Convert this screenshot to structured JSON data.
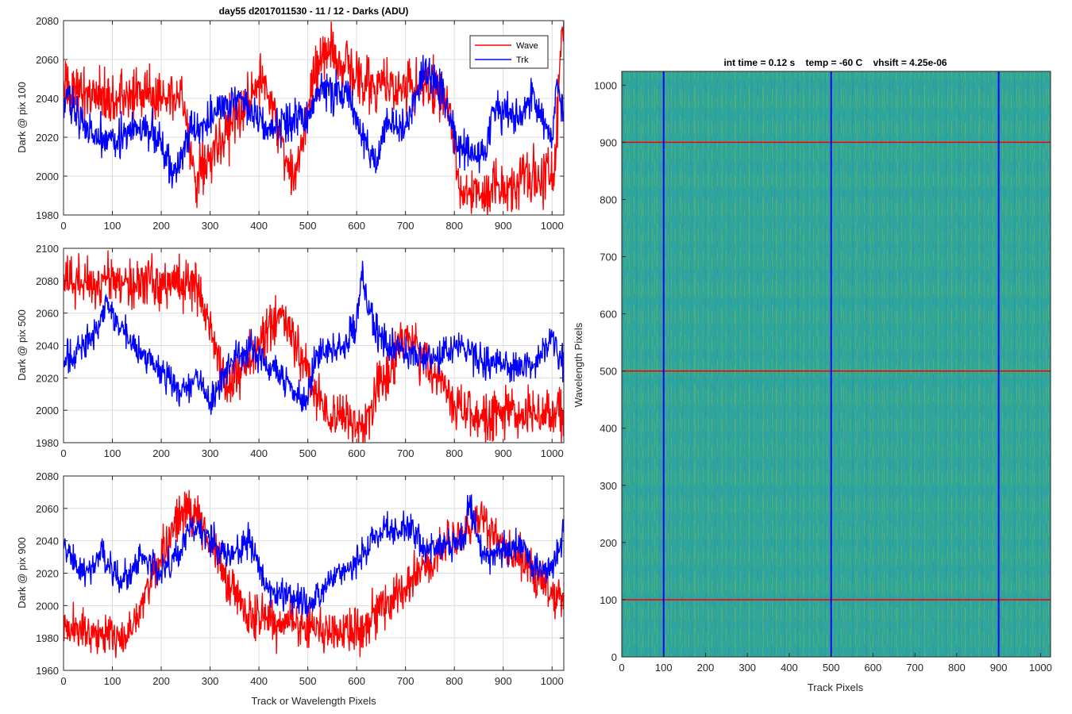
{
  "figure": {
    "left_title": "day55 d2017011530 - 11 / 12 - Darks (ADU)",
    "right_title": "int time = 0.12 s    temp = -60 C    vhsift = 4.25e-06",
    "legend": [
      "Wave",
      "Trk"
    ],
    "colors": {
      "wave": "#ff0000",
      "trk": "#0000ff",
      "grid": "#dedede",
      "axis": "#262626"
    }
  },
  "chart_data": [
    {
      "type": "line",
      "title": "day55 d2017011530 - 11 / 12 - Darks (ADU)",
      "xlabel": "",
      "ylabel": "Dark @ pix 100",
      "xlim": [
        0,
        1024
      ],
      "ylim": [
        1980,
        2080
      ],
      "x_ticks": [
        0,
        100,
        200,
        300,
        400,
        500,
        600,
        700,
        800,
        900,
        1000
      ],
      "y_ticks": [
        1980,
        2000,
        2020,
        2040,
        2060,
        2080
      ],
      "legend_position": "top-right",
      "series": [
        {
          "name": "Wave",
          "color": "#ff0000",
          "mean": 2028,
          "noise": 7,
          "points": [
            [
              45,
              2044
            ],
            [
              110,
              2040
            ],
            [
              240,
              2044
            ],
            [
              270,
              2000
            ],
            [
              410,
              2050
            ],
            [
              470,
              1998
            ],
            [
              530,
              2065
            ],
            [
              585,
              2055
            ],
            [
              610,
              2048
            ],
            [
              780,
              2045
            ],
            [
              815,
              1990
            ],
            [
              1005,
              2003
            ],
            [
              1020,
              2075
            ]
          ]
        },
        {
          "name": "Trk",
          "color": "#0000ff",
          "mean": 2028,
          "noise": 5,
          "points": [
            [
              0,
              2030
            ],
            [
              10,
              2046
            ],
            [
              20,
              2035
            ],
            [
              60,
              2022
            ],
            [
              100,
              2020
            ],
            [
              180,
              2025
            ],
            [
              225,
              2000
            ],
            [
              260,
              2022
            ],
            [
              300,
              2030
            ],
            [
              360,
              2040
            ],
            [
              420,
              2025
            ],
            [
              500,
              2030
            ],
            [
              520,
              2045
            ],
            [
              580,
              2042
            ],
            [
              630,
              2010
            ],
            [
              640,
              2005
            ],
            [
              660,
              2030
            ],
            [
              700,
              2025
            ],
            [
              740,
              2058
            ],
            [
              780,
              2038
            ],
            [
              810,
              2015
            ],
            [
              860,
              2008
            ],
            [
              880,
              2033
            ],
            [
              940,
              2030
            ],
            [
              960,
              2042
            ],
            [
              1000,
              2020
            ],
            [
              1010,
              2050
            ],
            [
              1024,
              2030
            ]
          ]
        }
      ]
    },
    {
      "type": "line",
      "title": "",
      "xlabel": "",
      "ylabel": "Dark @ pix 500",
      "xlim": [
        0,
        1024
      ],
      "ylim": [
        1980,
        2100
      ],
      "x_ticks": [
        0,
        100,
        200,
        300,
        400,
        500,
        600,
        700,
        800,
        900,
        1000
      ],
      "y_ticks": [
        1980,
        2000,
        2020,
        2040,
        2060,
        2080,
        2100
      ],
      "series": [
        {
          "name": "Wave",
          "color": "#ff0000",
          "mean": 2026,
          "noise": 8,
          "points": [
            [
              275,
              2079
            ],
            [
              330,
              2015
            ],
            [
              450,
              2058
            ],
            [
              540,
              1995
            ],
            [
              615,
              1992
            ],
            [
              700,
              2048
            ],
            [
              820,
              1998
            ]
          ]
        },
        {
          "name": "Trk",
          "color": "#0000ff",
          "mean": 2028,
          "noise": 5,
          "points": [
            [
              0,
              2030
            ],
            [
              40,
              2040
            ],
            [
              70,
              2048
            ],
            [
              85,
              2068
            ],
            [
              100,
              2060
            ],
            [
              140,
              2040
            ],
            [
              180,
              2030
            ],
            [
              240,
              2010
            ],
            [
              270,
              2022
            ],
            [
              300,
              2005
            ],
            [
              340,
              2028
            ],
            [
              380,
              2040
            ],
            [
              480,
              2010
            ],
            [
              490,
              2000
            ],
            [
              520,
              2036
            ],
            [
              580,
              2040
            ],
            [
              600,
              2058
            ],
            [
              610,
              2086
            ],
            [
              620,
              2070
            ],
            [
              645,
              2045
            ],
            [
              700,
              2035
            ],
            [
              750,
              2030
            ],
            [
              810,
              2040
            ],
            [
              860,
              2030
            ],
            [
              900,
              2028
            ],
            [
              960,
              2026
            ],
            [
              1000,
              2045
            ],
            [
              1024,
              2028
            ]
          ]
        }
      ]
    },
    {
      "type": "line",
      "title": "",
      "xlabel": "Track or Wavelength Pixels",
      "ylabel": "Dark @ pix 900",
      "xlim": [
        0,
        1024
      ],
      "ylim": [
        1960,
        2080
      ],
      "x_ticks": [
        0,
        100,
        200,
        300,
        400,
        500,
        600,
        700,
        800,
        900,
        1000
      ],
      "y_ticks": [
        1960,
        1980,
        2000,
        2020,
        2040,
        2060,
        2080
      ],
      "series": [
        {
          "name": "Wave",
          "color": "#ff0000",
          "mean": 2030,
          "noise": 7,
          "points": [
            [
              35,
              1985
            ],
            [
              130,
              1980
            ],
            [
              240,
              2058
            ],
            [
              270,
              2055
            ],
            [
              380,
              1993
            ],
            [
              600,
              1983
            ],
            [
              850,
              2055
            ],
            [
              1024,
              2002
            ]
          ]
        },
        {
          "name": "Trk",
          "color": "#0000ff",
          "mean": 2025,
          "noise": 5,
          "points": [
            [
              0,
              2035
            ],
            [
              40,
              2020
            ],
            [
              80,
              2030
            ],
            [
              120,
              2015
            ],
            [
              160,
              2030
            ],
            [
              200,
              2020
            ],
            [
              240,
              2035
            ],
            [
              260,
              2050
            ],
            [
              300,
              2040
            ],
            [
              340,
              2030
            ],
            [
              380,
              2040
            ],
            [
              420,
              2010
            ],
            [
              500,
              2000
            ],
            [
              560,
              2020
            ],
            [
              600,
              2028
            ],
            [
              650,
              2045
            ],
            [
              700,
              2048
            ],
            [
              740,
              2035
            ],
            [
              820,
              2040
            ],
            [
              830,
              2064
            ],
            [
              860,
              2030
            ],
            [
              940,
              2036
            ],
            [
              960,
              2026
            ],
            [
              1000,
              2020
            ],
            [
              1024,
              2045
            ]
          ]
        }
      ]
    },
    {
      "type": "heatmap",
      "title": "int time = 0.12 s    temp = -60 C    vhsift = 4.25e-06",
      "xlabel": "Track Pixels",
      "ylabel": "Wavelength Pixels",
      "xlim": [
        0,
        1024
      ],
      "ylim": [
        0,
        1024
      ],
      "x_ticks": [
        0,
        100,
        200,
        300,
        400,
        500,
        600,
        700,
        800,
        900,
        1000
      ],
      "y_ticks": [
        0,
        100,
        200,
        300,
        400,
        500,
        600,
        700,
        800,
        900,
        1000
      ],
      "colormap": "parula",
      "vertical_lines": {
        "color": "#0000ff",
        "x": [
          100,
          500,
          900
        ]
      },
      "horizontal_lines": {
        "color": "#ff0000",
        "y": [
          100,
          500,
          900
        ]
      }
    }
  ]
}
